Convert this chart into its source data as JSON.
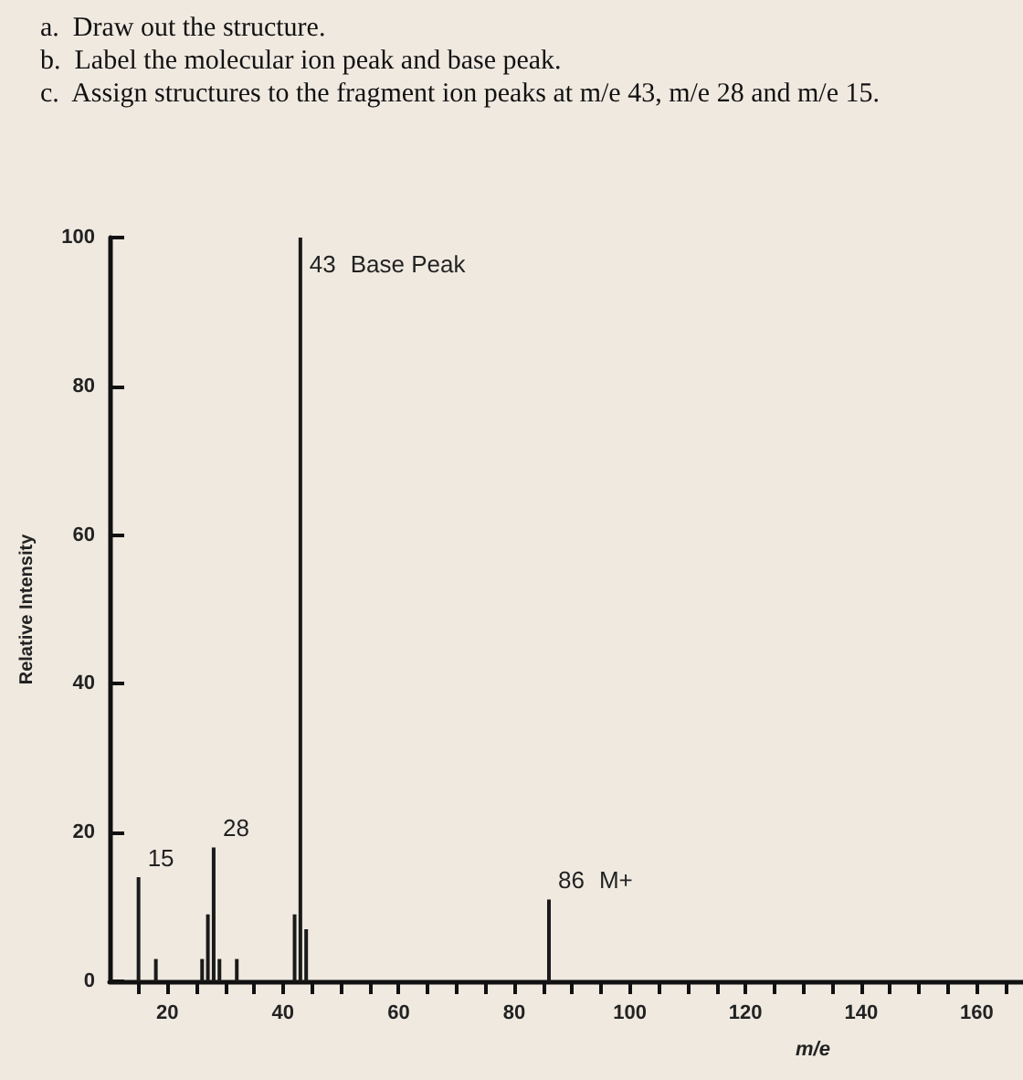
{
  "chart_data": {
    "type": "bar",
    "xlabel": "m/e",
    "ylabel": "Relative Intensity",
    "x": [
      15,
      18,
      26,
      27,
      28,
      29,
      32,
      42,
      43,
      44,
      86
    ],
    "values": [
      14,
      3,
      3,
      9,
      18,
      3,
      3,
      9,
      100,
      7,
      11
    ],
    "color": "#1a1a1a",
    "xlim": [
      10,
      168
    ],
    "xticks": [
      {
        "value": 15,
        "label": null
      },
      20,
      {
        "value": 25,
        "label": null
      },
      {
        "value": 30,
        "label": null
      },
      {
        "value": 35,
        "label": null
      },
      40,
      {
        "value": 45,
        "label": null
      },
      {
        "value": 50,
        "label": null
      },
      {
        "value": 55,
        "label": null
      },
      60,
      {
        "value": 65,
        "label": null
      },
      {
        "value": 70,
        "label": null
      },
      {
        "value": 75,
        "label": null
      },
      80,
      {
        "value": 85,
        "label": null
      },
      {
        "value": 90,
        "label": null
      },
      {
        "value": 95,
        "label": null
      },
      100,
      {
        "value": 105,
        "label": null
      },
      {
        "value": 110,
        "label": null
      },
      {
        "value": 115,
        "label": null
      },
      120,
      {
        "value": 125,
        "label": null
      },
      {
        "value": 130,
        "label": null
      },
      {
        "value": 135,
        "label": null
      },
      140,
      {
        "value": 145,
        "label": null
      },
      {
        "value": 150,
        "label": null
      },
      {
        "value": 155,
        "label": null
      },
      160,
      {
        "value": 165,
        "label": null
      }
    ],
    "ylim": [
      0,
      100
    ],
    "yticks": [
      0,
      20,
      40,
      60,
      80,
      100
    ],
    "grid": false,
    "annotations": [
      "a.  Draw out the structure.",
      "b.  Label the molecular ion peak and base peak.",
      "c.  Assign structures to the fragment ion peaks at m/e 43, m/e 28 and m/e 15.",
      {
        "text": "15",
        "x": 15,
        "y": 14
      },
      {
        "text": "28",
        "x": 28,
        "y": 18
      },
      {
        "text": "43",
        "x": 43,
        "y": 100
      },
      {
        "text": "Base Peak",
        "x": 43,
        "y": 100
      },
      {
        "text": "86",
        "x": 86,
        "y": 11
      },
      {
        "text": "M+",
        "x": 86,
        "y": 11
      }
    ]
  }
}
